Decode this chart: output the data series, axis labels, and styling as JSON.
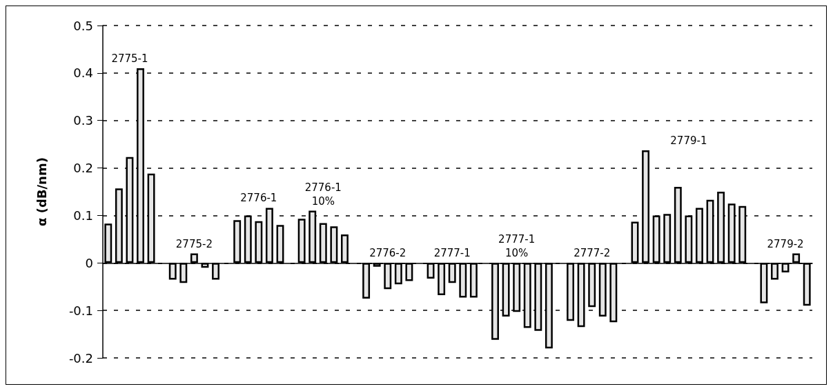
{
  "chart_data": {
    "type": "bar",
    "ylabel": "α (dB/nm)",
    "ylim": [
      -0.2,
      0.5
    ],
    "yticks": [
      0.5,
      0.4,
      0.3,
      0.2,
      0.1,
      0,
      -0.1,
      -0.2
    ],
    "grid": "y",
    "legend": false,
    "categories": [
      null,
      null,
      null,
      null,
      null,
      null,
      null,
      null,
      null,
      null,
      null,
      null,
      null,
      null,
      null,
      null,
      null,
      null,
      null,
      null,
      null,
      null,
      null,
      null,
      null,
      null,
      null,
      null,
      null,
      null,
      null,
      null,
      null,
      null,
      null,
      null,
      null,
      null,
      null,
      null,
      null,
      null,
      null,
      null,
      null,
      null,
      null,
      null,
      null,
      null,
      null,
      null,
      null,
      null,
      null,
      null,
      null,
      null,
      null,
      null,
      null,
      null,
      null,
      null,
      null,
      null
    ],
    "series": [
      {
        "name": "2775-1",
        "color": "#e6e6e6",
        "values": [
          0.083,
          0.157,
          0.223,
          0.41,
          0.188,
          null,
          null,
          null,
          null,
          null,
          null,
          null,
          null,
          null,
          null,
          null,
          null,
          null,
          null,
          null,
          null,
          null,
          null,
          null,
          null,
          null,
          null,
          null,
          null,
          null,
          null,
          null,
          null,
          null,
          null,
          null,
          null,
          null,
          null,
          null,
          null,
          null,
          null,
          null,
          null,
          null,
          null,
          null,
          null,
          null,
          null,
          null,
          null,
          null,
          null,
          null,
          null,
          null,
          null,
          null,
          null,
          null,
          null,
          null,
          null,
          null
        ]
      },
      {
        "name": "2775-2",
        "color": "#e6e6e6",
        "values": [
          null,
          null,
          null,
          null,
          null,
          null,
          -0.035,
          -0.042,
          0.02,
          -0.01,
          -0.035,
          null,
          null,
          null,
          null,
          null,
          null,
          null,
          null,
          null,
          null,
          null,
          null,
          null,
          null,
          null,
          null,
          null,
          null,
          null,
          null,
          null,
          null,
          null,
          null,
          null,
          null,
          null,
          null,
          null,
          null,
          null,
          null,
          null,
          null,
          null,
          null,
          null,
          null,
          null,
          null,
          null,
          null,
          null,
          null,
          null,
          null,
          null,
          null,
          null,
          null,
          null,
          null,
          null,
          null,
          null
        ]
      },
      {
        "name": "2776-1",
        "color": "#e6e6e6",
        "values": [
          null,
          null,
          null,
          null,
          null,
          null,
          null,
          null,
          null,
          null,
          null,
          null,
          0.09,
          0.1,
          0.088,
          0.116,
          0.08,
          null,
          null,
          null,
          null,
          null,
          null,
          null,
          null,
          null,
          null,
          null,
          null,
          null,
          null,
          null,
          null,
          null,
          null,
          null,
          null,
          null,
          null,
          null,
          null,
          null,
          null,
          null,
          null,
          null,
          null,
          null,
          null,
          null,
          null,
          null,
          null,
          null,
          null,
          null,
          null,
          null,
          null,
          null,
          null,
          null,
          null,
          null,
          null,
          null
        ]
      },
      {
        "name": "2776-1 10%",
        "color": "#e6e6e6",
        "values": [
          null,
          null,
          null,
          null,
          null,
          null,
          null,
          null,
          null,
          null,
          null,
          null,
          null,
          null,
          null,
          null,
          null,
          null,
          0.093,
          0.11,
          0.084,
          0.077,
          0.06,
          null,
          null,
          null,
          null,
          null,
          null,
          null,
          null,
          null,
          null,
          null,
          null,
          null,
          null,
          null,
          null,
          null,
          null,
          null,
          null,
          null,
          null,
          null,
          null,
          null,
          null,
          null,
          null,
          null,
          null,
          null,
          null,
          null,
          null,
          null,
          null,
          null,
          null,
          null,
          null,
          null,
          null,
          null
        ]
      },
      {
        "name": "2776-2",
        "color": "#e6e6e6",
        "values": [
          null,
          null,
          null,
          null,
          null,
          null,
          null,
          null,
          null,
          null,
          null,
          null,
          null,
          null,
          null,
          null,
          null,
          null,
          null,
          null,
          null,
          null,
          null,
          null,
          -0.075,
          -0.008,
          -0.055,
          -0.045,
          -0.038,
          null,
          null,
          null,
          null,
          null,
          null,
          null,
          null,
          null,
          null,
          null,
          null,
          null,
          null,
          null,
          null,
          null,
          null,
          null,
          null,
          null,
          null,
          null,
          null,
          null,
          null,
          null,
          null,
          null,
          null,
          null,
          null,
          null,
          null,
          null,
          null,
          null
        ]
      },
      {
        "name": "2777-1",
        "color": "#e6e6e6",
        "values": [
          null,
          null,
          null,
          null,
          null,
          null,
          null,
          null,
          null,
          null,
          null,
          null,
          null,
          null,
          null,
          null,
          null,
          null,
          null,
          null,
          null,
          null,
          null,
          null,
          null,
          null,
          null,
          null,
          null,
          null,
          -0.033,
          -0.068,
          -0.042,
          -0.073,
          -0.073,
          null,
          null,
          null,
          null,
          null,
          null,
          null,
          null,
          null,
          null,
          null,
          null,
          null,
          null,
          null,
          null,
          null,
          null,
          null,
          null,
          null,
          null,
          null,
          null,
          null,
          null,
          null,
          null,
          null,
          null,
          null
        ]
      },
      {
        "name": "2777-1 10%",
        "color": "#e6e6e6",
        "values": [
          null,
          null,
          null,
          null,
          null,
          null,
          null,
          null,
          null,
          null,
          null,
          null,
          null,
          null,
          null,
          null,
          null,
          null,
          null,
          null,
          null,
          null,
          null,
          null,
          null,
          null,
          null,
          null,
          null,
          null,
          null,
          null,
          null,
          null,
          null,
          null,
          -0.162,
          -0.113,
          -0.103,
          -0.137,
          -0.143,
          -0.18,
          null,
          null,
          null,
          null,
          null,
          null,
          null,
          null,
          null,
          null,
          null,
          null,
          null,
          null,
          null,
          null,
          null,
          null,
          null,
          null,
          null,
          null,
          null,
          null
        ]
      },
      {
        "name": "2777-2",
        "color": "#e6e6e6",
        "values": [
          null,
          null,
          null,
          null,
          null,
          null,
          null,
          null,
          null,
          null,
          null,
          null,
          null,
          null,
          null,
          null,
          null,
          null,
          null,
          null,
          null,
          null,
          null,
          null,
          null,
          null,
          null,
          null,
          null,
          null,
          null,
          null,
          null,
          null,
          null,
          null,
          null,
          null,
          null,
          null,
          null,
          null,
          null,
          -0.122,
          -0.135,
          -0.093,
          -0.113,
          -0.125,
          null,
          null,
          null,
          null,
          null,
          null,
          null,
          null,
          null,
          null,
          null,
          null,
          null,
          null,
          null,
          null,
          null,
          null
        ]
      },
      {
        "name": "2779-1",
        "color": "#e6e6e6",
        "values": [
          null,
          null,
          null,
          null,
          null,
          null,
          null,
          null,
          null,
          null,
          null,
          null,
          null,
          null,
          null,
          null,
          null,
          null,
          null,
          null,
          null,
          null,
          null,
          null,
          null,
          null,
          null,
          null,
          null,
          null,
          null,
          null,
          null,
          null,
          null,
          null,
          null,
          null,
          null,
          null,
          null,
          null,
          null,
          null,
          null,
          null,
          null,
          null,
          null,
          0.087,
          0.237,
          0.1,
          0.103,
          0.16,
          0.1,
          0.116,
          0.133,
          0.15,
          0.125,
          0.12,
          null,
          null,
          null,
          null,
          null,
          null
        ]
      },
      {
        "name": "2779-2",
        "color": "#e6e6e6",
        "values": [
          null,
          null,
          null,
          null,
          null,
          null,
          null,
          null,
          null,
          null,
          null,
          null,
          null,
          null,
          null,
          null,
          null,
          null,
          null,
          null,
          null,
          null,
          null,
          null,
          null,
          null,
          null,
          null,
          null,
          null,
          null,
          null,
          null,
          null,
          null,
          null,
          null,
          null,
          null,
          null,
          null,
          null,
          null,
          null,
          null,
          null,
          null,
          null,
          null,
          null,
          null,
          null,
          null,
          null,
          null,
          null,
          null,
          null,
          null,
          null,
          null,
          -0.085,
          -0.035,
          -0.02,
          0.02,
          -0.09
        ]
      }
    ]
  }
}
